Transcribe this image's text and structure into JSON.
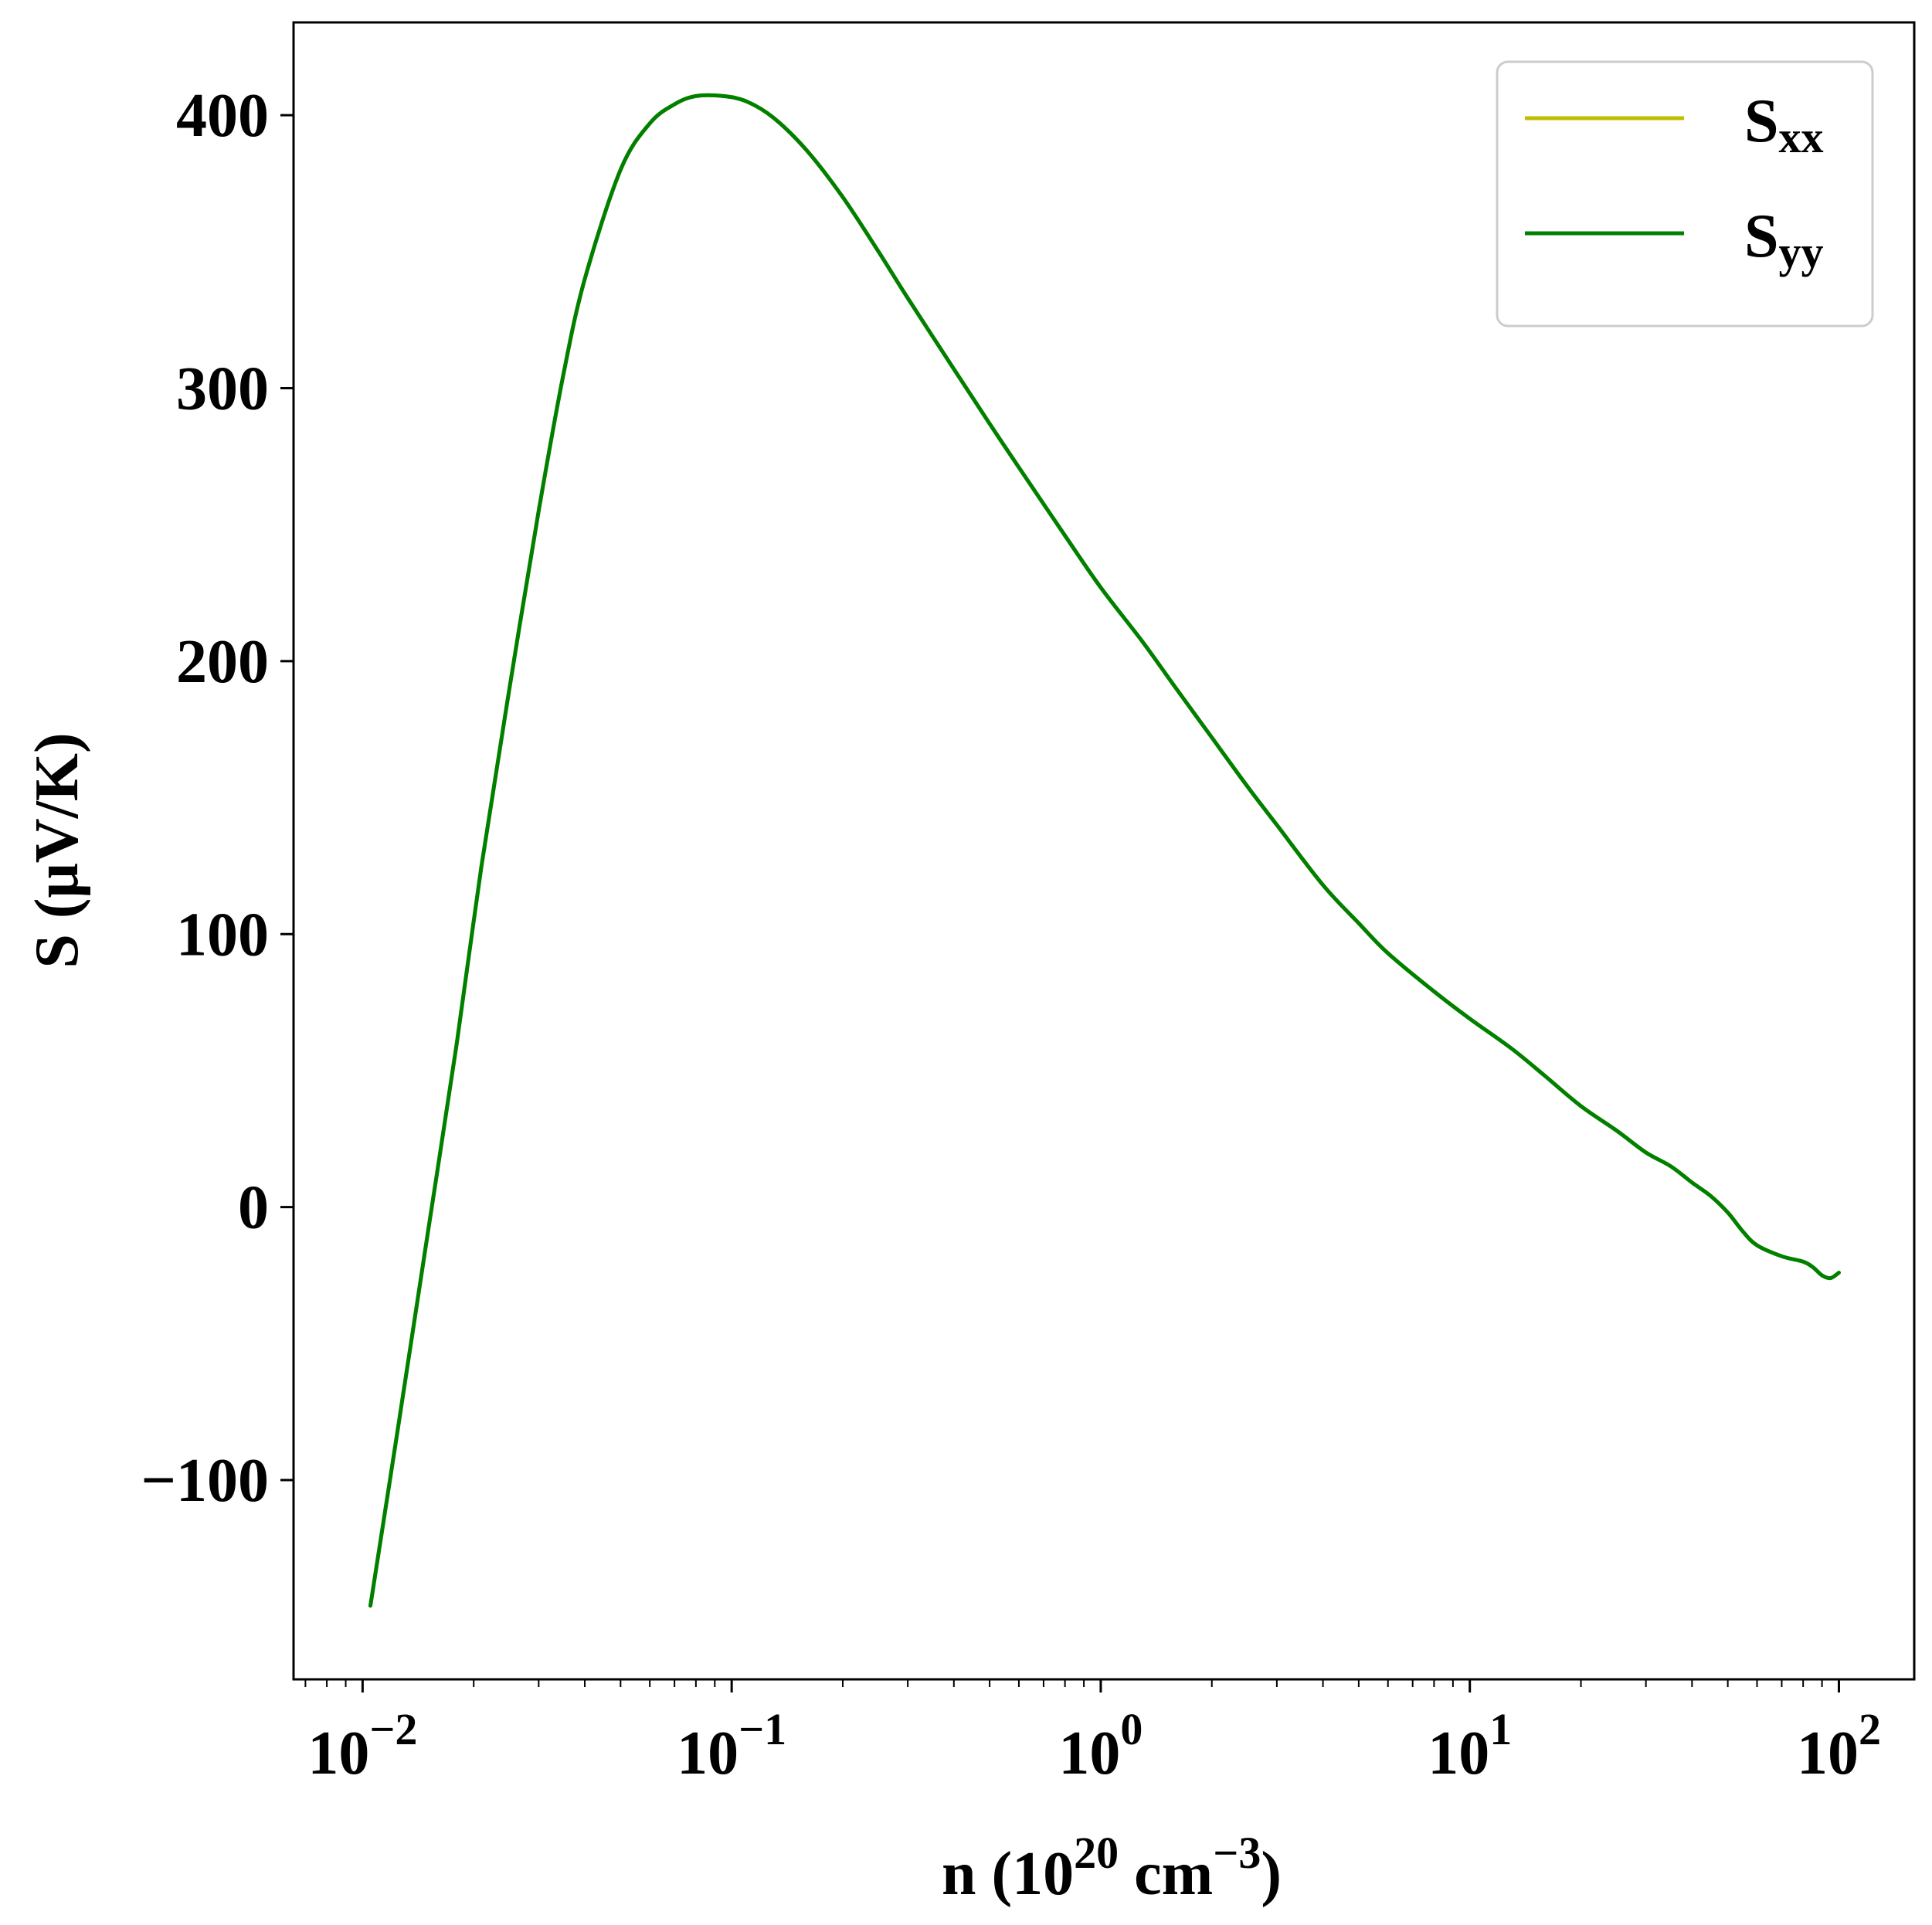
{
  "chart_data": {
    "type": "line",
    "title": "",
    "xlabel_parts": {
      "prefix": "n (10",
      "exp": "20",
      "unit": " cm",
      "unit_exp": "−3",
      "suffix": ")"
    },
    "ylabel": "S (μV/K)",
    "xscale": "log",
    "xlim": [
      0.0065,
      160
    ],
    "ylim": [
      -173,
      434
    ],
    "grid": false,
    "legend_position": "top-right",
    "x_ticks": [
      {
        "value": 0.01,
        "base": "10",
        "exp": "−2"
      },
      {
        "value": 0.1,
        "base": "10",
        "exp": "−1"
      },
      {
        "value": 1,
        "base": "10",
        "exp": "0"
      },
      {
        "value": 10,
        "base": "10",
        "exp": "1"
      },
      {
        "value": 100,
        "base": "10",
        "exp": "2"
      }
    ],
    "y_ticks": [
      {
        "value": -100,
        "label": "−100"
      },
      {
        "value": 0,
        "label": "0"
      },
      {
        "value": 100,
        "label": "100"
      },
      {
        "value": 200,
        "label": "200"
      },
      {
        "value": 300,
        "label": "300"
      },
      {
        "value": 400,
        "label": "400"
      }
    ],
    "series": [
      {
        "name": "S_xx",
        "legend_base": "S",
        "legend_sub": "xx",
        "color": "#bfbf00",
        "x": [
          0.0105,
          0.0125,
          0.015,
          0.018,
          0.021,
          0.025,
          0.03,
          0.035,
          0.04,
          0.05,
          0.06,
          0.07,
          0.08,
          0.095,
          0.11,
          0.13,
          0.16,
          0.2,
          0.25,
          0.3,
          0.4,
          0.5,
          0.6,
          0.8,
          1.0,
          1.3,
          1.6,
          2.0,
          2.5,
          3.0,
          4.0,
          5.0,
          6.0,
          8.0,
          10,
          13,
          16,
          20,
          25,
          30,
          35,
          40,
          45,
          50,
          55,
          60,
          70,
          80,
          85,
          90,
          95,
          100
        ],
        "y": [
          -146,
          -80,
          -10,
          60,
          125,
          190,
          255,
          305,
          340,
          380,
          397,
          404,
          407,
          407,
          405,
          399,
          387,
          370,
          350,
          333,
          307,
          287,
          271,
          246,
          227,
          207,
          190,
          172,
          154,
          140,
          118,
          104,
          93,
          79,
          69,
          58,
          48,
          37,
          28,
          20,
          15,
          9,
          4,
          -2,
          -9,
          -14,
          -18,
          -20,
          -22,
          -25,
          -26,
          -24
        ]
      },
      {
        "name": "S_yy",
        "legend_base": "S",
        "legend_sub": "yy",
        "color": "#008000",
        "x": [
          0.0105,
          0.0125,
          0.015,
          0.018,
          0.021,
          0.025,
          0.03,
          0.035,
          0.04,
          0.05,
          0.06,
          0.07,
          0.08,
          0.095,
          0.11,
          0.13,
          0.16,
          0.2,
          0.25,
          0.3,
          0.4,
          0.5,
          0.6,
          0.8,
          1.0,
          1.3,
          1.6,
          2.0,
          2.5,
          3.0,
          4.0,
          5.0,
          6.0,
          8.0,
          10,
          13,
          16,
          20,
          25,
          30,
          35,
          40,
          45,
          50,
          55,
          60,
          70,
          80,
          85,
          90,
          95,
          100
        ],
        "y": [
          -146,
          -80,
          -10,
          60,
          125,
          190,
          255,
          305,
          340,
          380,
          397,
          404,
          407,
          407,
          405,
          399,
          387,
          370,
          350,
          333,
          307,
          287,
          271,
          246,
          227,
          207,
          190,
          172,
          154,
          140,
          118,
          104,
          93,
          79,
          69,
          58,
          48,
          37,
          28,
          20,
          15,
          9,
          4,
          -2,
          -9,
          -14,
          -18,
          -20,
          -22,
          -25,
          -26,
          -24
        ]
      }
    ]
  }
}
